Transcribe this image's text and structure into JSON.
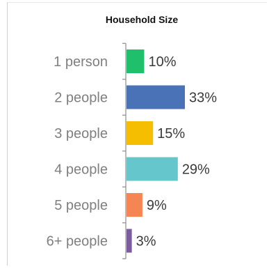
{
  "chart_data": {
    "type": "bar",
    "orientation": "horizontal",
    "title": "Household Size",
    "categories": [
      "1 person",
      "2 people",
      "3 people",
      "4 people",
      "5 people",
      "6+ people"
    ],
    "values": [
      10,
      33,
      15,
      29,
      9,
      3
    ],
    "value_labels": [
      "10%",
      "33%",
      "15%",
      "29%",
      "9%",
      "3%"
    ],
    "colors": [
      "#1fbf6b",
      "#4a72b7",
      "#f6be00",
      "#65c6cb",
      "#f58653",
      "#7b5c9e"
    ],
    "xlim": [
      0,
      50
    ],
    "grid": false,
    "legend": "none"
  }
}
